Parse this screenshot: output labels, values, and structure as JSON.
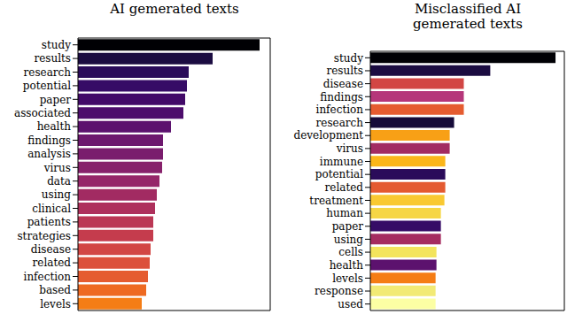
{
  "chart_data": [
    {
      "type": "bar",
      "orientation": "horizontal",
      "title": "AI gemerated texts",
      "tick_labels": "y",
      "xlim": [
        0,
        217
      ],
      "categories": [
        "study",
        "results",
        "research",
        "potential",
        "paper",
        "associated",
        "health",
        "findings",
        "analysis",
        "virus",
        "data",
        "using",
        "clinical",
        "patients",
        "strategies",
        "disease",
        "related",
        "infection",
        "based",
        "levels"
      ],
      "values": [
        205,
        152,
        125,
        123,
        121,
        119,
        105,
        96,
        96,
        95,
        92,
        89,
        87,
        85,
        85,
        82,
        81,
        79,
        77,
        72
      ],
      "colors": [
        "#000004",
        "#1b0c41",
        "#2a0b5a",
        "#360c66",
        "#420a68",
        "#4d0d6c",
        "#5c126e",
        "#6d186e",
        "#7a1d6d",
        "#87216b",
        "#952669",
        "#a22b62",
        "#ae305c",
        "#bb3754",
        "#c53c4d",
        "#d24644",
        "#dc503b",
        "#e55c30",
        "#ee6a22",
        "#f57d15"
      ]
    },
    {
      "type": "bar",
      "orientation": "horizontal",
      "title": "Misclassified AI\ngemerated texts",
      "tick_labels": "y",
      "xlim": [
        0,
        220
      ],
      "categories": [
        "study",
        "results",
        "disease",
        "findings",
        "infection",
        "research",
        "development",
        "virus",
        "immune",
        "potential",
        "related",
        "treatment",
        "human",
        "paper",
        "using",
        "cells",
        "health",
        "levels",
        "response",
        "used"
      ],
      "values": [
        210,
        136,
        106,
        106,
        106,
        95,
        90,
        90,
        85,
        85,
        85,
        84,
        80,
        80,
        80,
        75,
        75,
        74,
        74,
        74
      ],
      "colors": [
        "#000004",
        "#1b0c41",
        "#d24644",
        "#b5367a",
        "#e55c30",
        "#160b39",
        "#f8a016",
        "#a22b62",
        "#fbb61a",
        "#2a0b5a",
        "#e45a31",
        "#f9c932",
        "#f6d645",
        "#360c66",
        "#a52c60",
        "#f3e45d",
        "#5c126e",
        "#f57d15",
        "#f2ea75",
        "#fcffa4"
      ]
    }
  ]
}
